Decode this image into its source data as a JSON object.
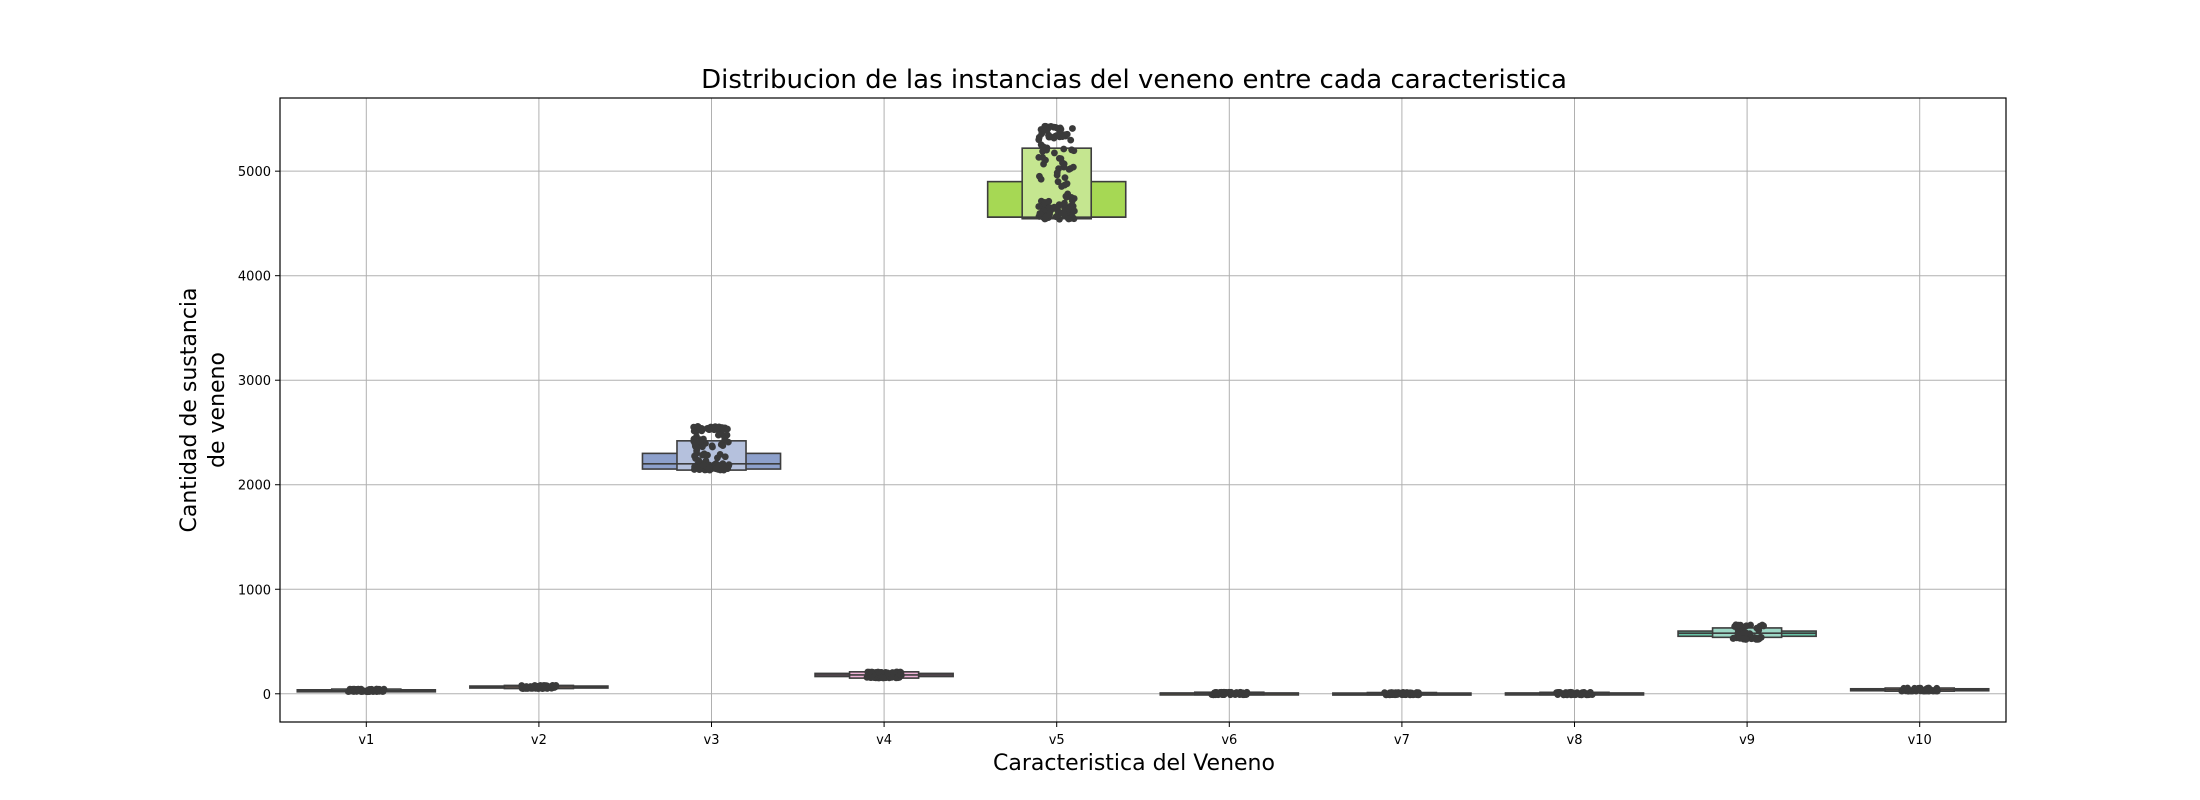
{
  "chart_data": {
    "type": "boxen",
    "title": "Distribucion de las instancias del veneno entre cada caracteristica",
    "xlabel": "Caracteristica del Veneno",
    "ylabel_lines": [
      "Cantidad de sustancia",
      "de veneno"
    ],
    "ylim": [
      -270,
      5700
    ],
    "yticks": [
      0,
      1000,
      2000,
      3000,
      4000,
      5000
    ],
    "grid": true,
    "categories": [
      "v1",
      "v2",
      "v3",
      "v4",
      "v5",
      "v6",
      "v7",
      "v8",
      "v9",
      "v10"
    ],
    "series": [
      {
        "category": "v1",
        "color": "#66c2a5",
        "min": 20,
        "max": 45,
        "median": 30,
        "levels": [
          [
            25,
            38
          ],
          [
            20,
            45
          ]
        ]
      },
      {
        "category": "v2",
        "color": "#fc8d62",
        "min": 50,
        "max": 80,
        "median": 65,
        "levels": [
          [
            58,
            74
          ],
          [
            50,
            80
          ]
        ]
      },
      {
        "category": "v3",
        "color": "#8da0cb",
        "min": 2140,
        "max": 2560,
        "median": 2200,
        "levels": [
          [
            2150,
            2300
          ],
          [
            2140,
            2420
          ]
        ]
      },
      {
        "category": "v4",
        "color": "#e78ac3",
        "min": 150,
        "max": 210,
        "median": 180,
        "levels": [
          [
            165,
            195
          ],
          [
            150,
            210
          ]
        ]
      },
      {
        "category": "v5",
        "color": "#a6d854",
        "min": 4540,
        "max": 5430,
        "median": 4560,
        "levels": [
          [
            4560,
            4900
          ],
          [
            4545,
            5220
          ]
        ]
      },
      {
        "category": "v6",
        "color": "#ffd92f",
        "min": -10,
        "max": 15,
        "median": 2,
        "levels": [
          [
            -5,
            8
          ],
          [
            -10,
            15
          ]
        ]
      },
      {
        "category": "v7",
        "color": "#e5c494",
        "min": -10,
        "max": 12,
        "median": 1,
        "levels": [
          [
            -5,
            7
          ],
          [
            -10,
            12
          ]
        ]
      },
      {
        "category": "v8",
        "color": "#b3b3b3",
        "min": -10,
        "max": 14,
        "median": 2,
        "levels": [
          [
            -5,
            8
          ],
          [
            -10,
            14
          ]
        ]
      },
      {
        "category": "v9",
        "color": "#66c2a5",
        "min": 520,
        "max": 660,
        "median": 580,
        "levels": [
          [
            550,
            600
          ],
          [
            540,
            630
          ]
        ]
      },
      {
        "category": "v10",
        "color": "#fc8d62",
        "min": 25,
        "max": 55,
        "median": 40,
        "levels": [
          [
            32,
            48
          ],
          [
            25,
            55
          ]
        ]
      }
    ],
    "strip_color": "#3a3a3a",
    "box_edge_color": "#3d3d3d"
  }
}
